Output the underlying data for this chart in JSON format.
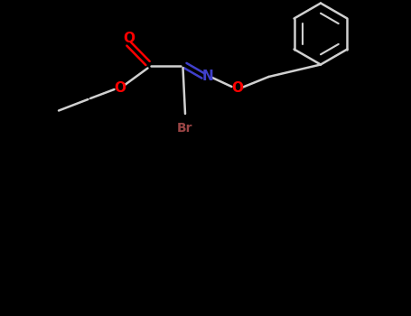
{
  "background_color": "#000000",
  "bond_color": "#d0d0d0",
  "atom_colors": {
    "O": "#ff0000",
    "N": "#4040cc",
    "Br": "#994444",
    "C": "#d0d0d0"
  },
  "figsize": [
    4.55,
    3.5
  ],
  "dpi": 100,
  "xlim": [
    0,
    9.1
  ],
  "ylim": [
    0,
    7.0
  ]
}
